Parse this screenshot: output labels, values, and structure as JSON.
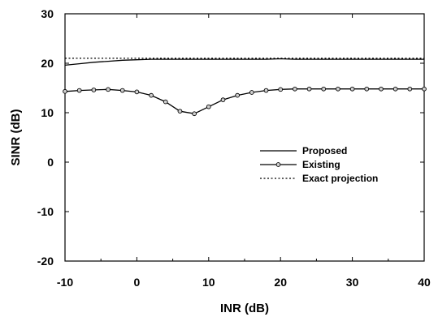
{
  "chart_data": {
    "type": "line",
    "title": "",
    "xlabel": "INR (dB)",
    "ylabel": "SINR (dB)",
    "xlim": [
      -10,
      40
    ],
    "ylim": [
      -20,
      30
    ],
    "xticks": [
      -10,
      0,
      10,
      20,
      30,
      40
    ],
    "yticks": [
      -20,
      -10,
      0,
      10,
      20,
      30
    ],
    "legend_position": "right",
    "series": [
      {
        "name": "Proposed",
        "style": "solid",
        "marker": "none",
        "color": "#000000",
        "x": [
          -10,
          -8,
          -6,
          -4,
          -2,
          0,
          2,
          4,
          6,
          8,
          10,
          12,
          14,
          16,
          18,
          20,
          22,
          24,
          26,
          28,
          30,
          32,
          34,
          36,
          38,
          40
        ],
        "y": [
          19.6,
          19.9,
          20.2,
          20.4,
          20.6,
          20.7,
          20.8,
          20.8,
          20.8,
          20.8,
          20.8,
          20.8,
          20.8,
          20.8,
          20.8,
          20.9,
          20.8,
          20.8,
          20.8,
          20.8,
          20.8,
          20.8,
          20.8,
          20.8,
          20.8,
          20.8
        ]
      },
      {
        "name": "Existing",
        "style": "solid",
        "marker": "circle",
        "color": "#000000",
        "x": [
          -10,
          -8,
          -6,
          -4,
          -2,
          0,
          2,
          4,
          6,
          8,
          10,
          12,
          14,
          16,
          18,
          20,
          22,
          24,
          26,
          28,
          30,
          32,
          34,
          36,
          38,
          40
        ],
        "y": [
          14.3,
          14.5,
          14.6,
          14.7,
          14.5,
          14.2,
          13.5,
          12.2,
          10.3,
          9.8,
          11.2,
          12.6,
          13.5,
          14.1,
          14.5,
          14.7,
          14.8,
          14.8,
          14.8,
          14.8,
          14.8,
          14.8,
          14.8,
          14.8,
          14.8,
          14.8
        ]
      },
      {
        "name": "Exact projection",
        "style": "dotted",
        "marker": "none",
        "color": "#000000",
        "x": [
          -10,
          40
        ],
        "y": [
          21.0,
          21.0
        ]
      }
    ]
  }
}
